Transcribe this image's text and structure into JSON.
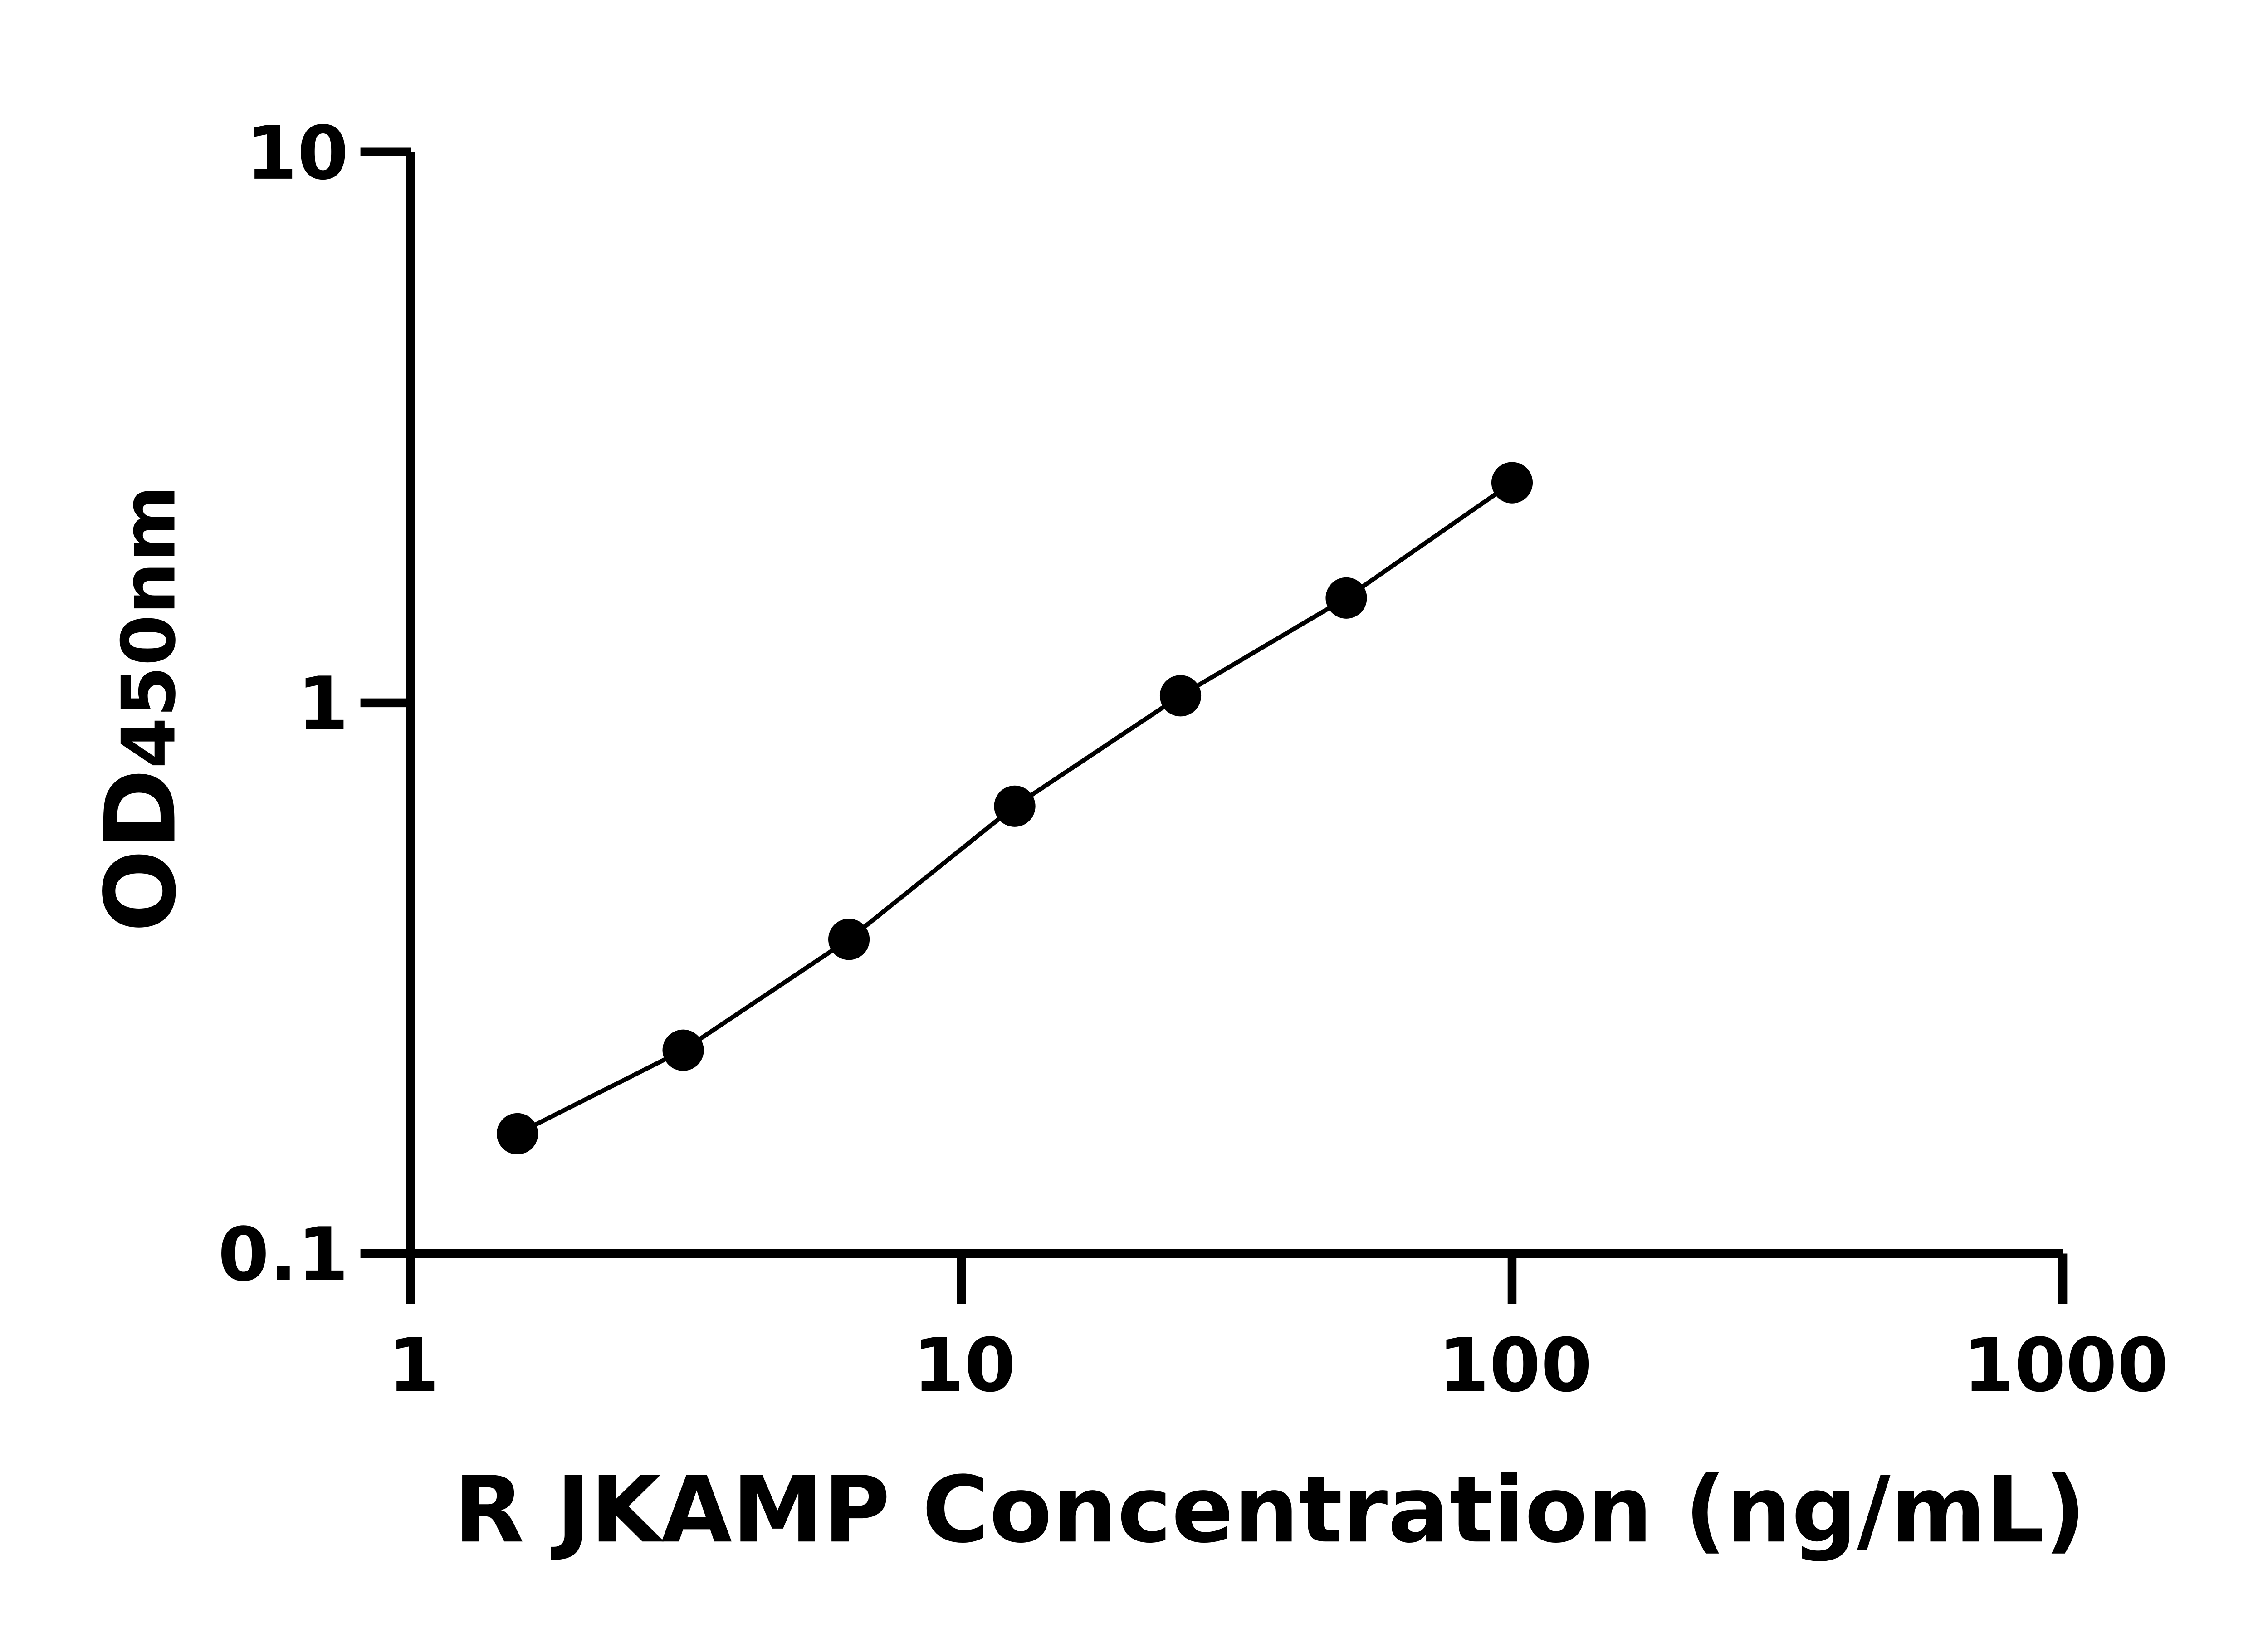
{
  "chart_data": {
    "type": "scatter",
    "title": "",
    "xlabel": "R JKAMP Concentration (ng/mL)",
    "ylabel_main": "OD",
    "ylabel_sub": "450nm",
    "x_scale": "log",
    "y_scale": "log",
    "xlim": [
      1,
      1000
    ],
    "ylim": [
      0.1,
      10
    ],
    "x_ticks": [
      "1",
      "10",
      "100",
      "1000"
    ],
    "y_ticks": [
      "0.1",
      "1",
      "10"
    ],
    "grid": false,
    "legend": "none",
    "fit_line": true,
    "color": "#000000",
    "series": [
      {
        "x": [
          1.5625,
          3.125,
          6.25,
          12.5,
          25,
          50,
          100
        ],
        "y": [
          0.165,
          0.234,
          0.372,
          0.649,
          1.03,
          1.55,
          2.51
        ]
      }
    ]
  }
}
